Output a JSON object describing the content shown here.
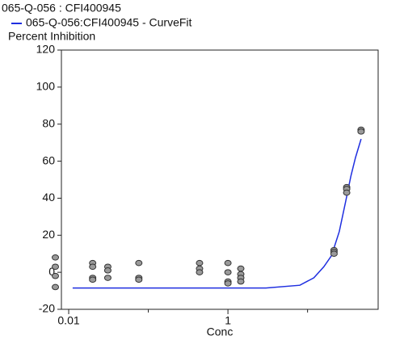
{
  "chart_data": {
    "type": "scatter",
    "title": "065-Q-056  : CFI400945",
    "y_label": "Percent Inhibition",
    "x_label": "Conc",
    "x_log": true,
    "xlim": [
      0.0081,
      77
    ],
    "ylim": [
      -20,
      120
    ],
    "xticks": [
      0.01,
      1
    ],
    "x_minor_ticks": [
      0.1,
      10
    ],
    "yticks": [
      -20,
      0,
      20,
      40,
      60,
      80,
      100,
      120
    ],
    "points": {
      "color": "#9a9a9a",
      "x": [
        0.0068,
        0.0068,
        0.0068,
        0.0068,
        0.02,
        0.02,
        0.02,
        0.02,
        0.031,
        0.031,
        0.031,
        0.076,
        0.076,
        0.076,
        0.44,
        0.44,
        0.44,
        1,
        1,
        1,
        1,
        1.45,
        1.45,
        1.45,
        1.45,
        21.5,
        21.5,
        21.5,
        31,
        31,
        31,
        47,
        47
      ],
      "values": [
        8,
        3,
        -2,
        -8,
        5,
        3,
        -3,
        -4,
        3,
        1,
        -3,
        5,
        -3,
        -4,
        5,
        2,
        0,
        5,
        0,
        -5,
        -6,
        2,
        -1,
        -3,
        -5,
        12,
        11,
        10,
        46,
        45,
        43,
        77,
        76
      ]
    },
    "series": [
      {
        "name": "065-Q-056:CFI400945 - CurveFit",
        "color": "#1f2fe0",
        "x": [
          0.0112,
          3,
          8,
          12,
          16,
          20,
          25,
          30,
          35,
          40,
          47
        ],
        "values": [
          -8.5,
          -8.5,
          -7,
          -3,
          3,
          9,
          22,
          38,
          52,
          62,
          72
        ]
      }
    ]
  }
}
